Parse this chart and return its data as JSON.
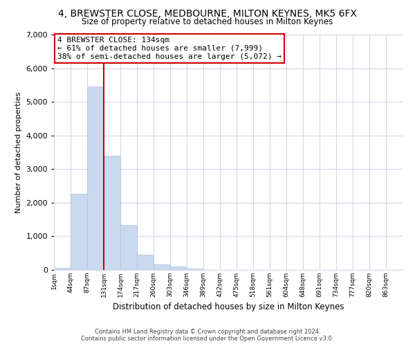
{
  "title1": "4, BREWSTER CLOSE, MEDBOURNE, MILTON KEYNES, MK5 6FX",
  "title2": "Size of property relative to detached houses in Milton Keynes",
  "xlabel": "Distribution of detached houses by size in Milton Keynes",
  "ylabel": "Number of detached properties",
  "bar_labels": [
    "1sqm",
    "44sqm",
    "87sqm",
    "131sqm",
    "174sqm",
    "217sqm",
    "260sqm",
    "303sqm",
    "346sqm",
    "389sqm",
    "432sqm",
    "475sqm",
    "518sqm",
    "561sqm",
    "604sqm",
    "648sqm",
    "691sqm",
    "734sqm",
    "777sqm",
    "820sqm",
    "863sqm"
  ],
  "bar_values": [
    60,
    2270,
    5450,
    3400,
    1340,
    450,
    175,
    100,
    50,
    10,
    0,
    0,
    0,
    0,
    0,
    0,
    0,
    0,
    0,
    0,
    0
  ],
  "bar_color": "#c9d9f0",
  "bar_edge_color": "#b0c4de",
  "vline_x_index": 3,
  "vline_color": "#cc0000",
  "annotation_title": "4 BREWSTER CLOSE: 134sqm",
  "annotation_line1": "← 61% of detached houses are smaller (7,999)",
  "annotation_line2": "38% of semi-detached houses are larger (5,072) →",
  "annotation_box_color": "#ffffff",
  "annotation_box_edge": "#cc0000",
  "ylim": [
    0,
    7000
  ],
  "yticks": [
    0,
    1000,
    2000,
    3000,
    4000,
    5000,
    6000,
    7000
  ],
  "footer1": "Contains HM Land Registry data © Crown copyright and database right 2024.",
  "footer2": "Contains public sector information licensed under the Open Government Licence v3.0.",
  "background_color": "#ffffff",
  "grid_color": "#d0d8e8"
}
